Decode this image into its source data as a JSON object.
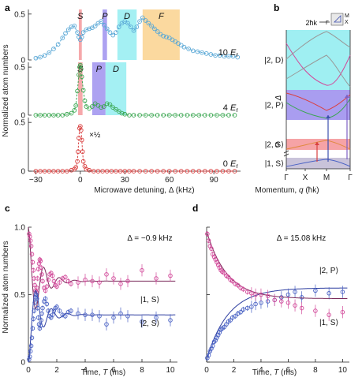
{
  "colors": {
    "blue": "#4a7fc8",
    "light_blue": "#5aa8d6",
    "green": "#3aa650",
    "red": "#d94040",
    "magenta": "#d24a9a",
    "navy": "#3d4fae",
    "cyan_band": "#9feff2",
    "orange_band": "#fbd79a",
    "purple_band": "#a99df0",
    "pink_band": "#f6a3a6",
    "gray_band": "#c9c3da"
  },
  "chart_data": [
    {
      "panel": "a",
      "type": "scatter",
      "xlabel": "Microwave detuning, Δ (kHz)",
      "ylabel": "Normalized atom numbers",
      "xlim": [
        -35,
        108
      ],
      "xticks": [
        "−30",
        "0",
        "30",
        "60",
        "90"
      ],
      "subplots": [
        {
          "label": "10 E_r",
          "label_main": "10 ",
          "label_e": "E",
          "label_sub": "r",
          "ylim": [
            0,
            0.55
          ],
          "yticks": [
            "0",
            "0.5"
          ],
          "color": "#5aa8d6",
          "bands": [
            {
              "label": "S",
              "from": -1,
              "to": 1,
              "color": "#f6a3a6"
            },
            {
              "label": "P",
              "from": 15,
              "to": 18,
              "color": "#a99df0"
            },
            {
              "label": "D",
              "from": 25,
              "to": 38,
              "color": "#9feff2"
            },
            {
              "label": "F",
              "from": 42,
              "to": 67,
              "color": "#fbd79a"
            }
          ],
          "x": [
            -30,
            -27,
            -24,
            -21,
            -18,
            -15,
            -12,
            -10,
            -8,
            -6,
            -4,
            -2,
            -1,
            0,
            1,
            2,
            4,
            6,
            8,
            10,
            12,
            14,
            16,
            18,
            20,
            22,
            24,
            26,
            28,
            30,
            32,
            34,
            36,
            38,
            40,
            42,
            44,
            46,
            48,
            50,
            52,
            54,
            56,
            58,
            60,
            62,
            64,
            66,
            68,
            70,
            73,
            76,
            79,
            82,
            85,
            88,
            91,
            94,
            97,
            100,
            103,
            106
          ],
          "y": [
            0.02,
            0.03,
            0.05,
            0.08,
            0.12,
            0.17,
            0.24,
            0.29,
            0.33,
            0.36,
            0.37,
            0.3,
            0.25,
            0.22,
            0.25,
            0.3,
            0.33,
            0.34,
            0.35,
            0.37,
            0.4,
            0.42,
            0.38,
            0.34,
            0.3,
            0.27,
            0.3,
            0.36,
            0.4,
            0.42,
            0.4,
            0.36,
            0.32,
            0.36,
            0.42,
            0.46,
            0.43,
            0.4,
            0.37,
            0.34,
            0.31,
            0.28,
            0.26,
            0.25,
            0.24,
            0.22,
            0.2,
            0.18,
            0.16,
            0.14,
            0.12,
            0.1,
            0.09,
            0.08,
            0.07,
            0.06,
            0.05,
            0.05,
            0.04,
            0.04,
            0.04,
            0.03
          ]
        },
        {
          "label": "4 E_r",
          "label_main": "4 ",
          "label_e": "E",
          "label_sub": "r",
          "ylim": [
            0,
            0.55
          ],
          "yticks": [
            "0",
            "0.5"
          ],
          "color": "#3aa650",
          "bands": [
            {
              "label": "S",
              "from": -1.5,
              "to": 1.5,
              "color": "#f6a3a6"
            },
            {
              "label": "P",
              "from": 8,
              "to": 17,
              "color": "#a99df0"
            },
            {
              "label": "D",
              "from": 17,
              "to": 31,
              "color": "#9feff2"
            }
          ],
          "x": [
            -30,
            -27,
            -24,
            -21,
            -18,
            -15,
            -12,
            -9,
            -6,
            -4,
            -3,
            -2,
            -1,
            -0.5,
            0,
            0.5,
            1,
            2,
            3,
            4,
            6,
            8,
            10,
            12,
            14,
            16,
            18,
            20,
            22,
            24,
            26,
            28,
            30,
            33,
            36,
            40,
            44,
            48,
            52,
            56,
            60,
            64,
            68,
            72,
            76,
            80,
            84,
            88,
            92,
            96,
            100,
            104
          ],
          "y": [
            0,
            0,
            0,
            0,
            0,
            0,
            0,
            0.01,
            0.02,
            0.05,
            0.1,
            0.25,
            0.42,
            0.5,
            0.52,
            0.48,
            0.4,
            0.26,
            0.15,
            0.09,
            0.07,
            0.09,
            0.12,
            0.1,
            0.08,
            0.09,
            0.12,
            0.11,
            0.08,
            0.06,
            0.04,
            0.02,
            0.01,
            0,
            0,
            0,
            0,
            0,
            0,
            0,
            0,
            0,
            0,
            0,
            0,
            0,
            0,
            0,
            0,
            0,
            0,
            0
          ]
        },
        {
          "label": "0 E_r",
          "label_main": "0 ",
          "label_e": "E",
          "label_sub": "r",
          "ylim": [
            0,
            0.55
          ],
          "yticks": [
            "0",
            "0.5"
          ],
          "color": "#d94040",
          "annotation": "×½",
          "x": [
            -30,
            -27,
            -24,
            -21,
            -18,
            -15,
            -12,
            -9,
            -6,
            -4,
            -3,
            -2,
            -1.5,
            -1,
            -0.5,
            0,
            0.5,
            1,
            1.5,
            2,
            3,
            4,
            6,
            9,
            12,
            15,
            18,
            21,
            24,
            27,
            30,
            33,
            36,
            40,
            44,
            48,
            52,
            56,
            60,
            64,
            68,
            72,
            76,
            80,
            84,
            88,
            92,
            96,
            100,
            104
          ],
          "y": [
            0,
            0,
            0,
            0,
            0,
            0,
            0,
            0,
            0.01,
            0.02,
            0.04,
            0.1,
            0.2,
            0.34,
            0.44,
            0.46,
            0.42,
            0.32,
            0.2,
            0.1,
            0.05,
            0.02,
            0.01,
            0,
            0,
            0,
            0,
            0,
            0,
            0,
            0,
            0,
            0,
            0,
            0,
            0,
            0,
            0,
            0,
            0,
            0,
            0,
            0,
            0,
            0,
            0,
            0,
            0,
            0,
            0
          ]
        }
      ]
    },
    {
      "panel": "b",
      "type": "line",
      "xlabel": "Momentum, q (ħk)",
      "xlabel_pre": "Momentum, ",
      "xlabel_q": "q",
      "xlabel_post": " (ħk)",
      "ylabel": "Δ",
      "xticks": [
        "Γ",
        "X",
        "M",
        "Γ"
      ],
      "scale_label": "2ħk",
      "inset_labels": [
        "M",
        "X",
        "Γ"
      ],
      "bands": [
        {
          "label": "|2, D⟩",
          "color": "#9feff2"
        },
        {
          "label": "|2, P⟩",
          "color": "#a99df0"
        },
        {
          "label": "|2, S⟩",
          "color": "#f6a3a6"
        },
        {
          "label": "|1, S⟩",
          "color": "#c9c3da"
        }
      ],
      "axis_break_tick": "0"
    },
    {
      "panel": "c",
      "type": "scatter",
      "title": "Δ = −0.9 kHz",
      "xlabel": "Time, T (ms)",
      "xlabel_pre": "Time, ",
      "xlabel_t": "T",
      "xlabel_post": " (ms)",
      "ylabel": "Normalized atom numbers",
      "xlim": [
        0,
        10.5
      ],
      "ylim": [
        0,
        1.0
      ],
      "xticks": [
        "0",
        "2",
        "4",
        "6",
        "8",
        "10"
      ],
      "yticks": [
        "0",
        "0.5",
        "1.0"
      ],
      "series": [
        {
          "name": "|1, S⟩",
          "color": "#d24a9a",
          "x": [
            0.05,
            0.1,
            0.15,
            0.2,
            0.25,
            0.3,
            0.35,
            0.4,
            0.45,
            0.5,
            0.55,
            0.6,
            0.65,
            0.7,
            0.75,
            0.8,
            0.85,
            0.9,
            0.95,
            1.0,
            1.1,
            1.2,
            1.3,
            1.4,
            1.5,
            1.6,
            1.7,
            1.8,
            1.9,
            2.0,
            2.2,
            2.4,
            2.6,
            2.8,
            3.0,
            3.5,
            4.0,
            4.5,
            5.0,
            5.5,
            6.0,
            6.5,
            7.0,
            8.0,
            9.0,
            10.0
          ],
          "y": [
            0.95,
            0.93,
            0.9,
            0.86,
            0.8,
            0.74,
            0.68,
            0.62,
            0.57,
            0.53,
            0.52,
            0.55,
            0.62,
            0.69,
            0.73,
            0.76,
            0.75,
            0.7,
            0.65,
            0.6,
            0.55,
            0.53,
            0.56,
            0.61,
            0.65,
            0.66,
            0.64,
            0.6,
            0.57,
            0.56,
            0.59,
            0.62,
            0.63,
            0.6,
            0.58,
            0.59,
            0.61,
            0.6,
            0.59,
            0.65,
            0.62,
            0.58,
            0.6,
            0.68,
            0.62,
            0.64
          ]
        },
        {
          "name": "|2, S⟩",
          "color": "#4a62c4",
          "x": [
            0.05,
            0.1,
            0.15,
            0.2,
            0.25,
            0.3,
            0.35,
            0.4,
            0.45,
            0.5,
            0.55,
            0.6,
            0.65,
            0.7,
            0.75,
            0.8,
            0.85,
            0.9,
            0.95,
            1.0,
            1.1,
            1.2,
            1.3,
            1.4,
            1.5,
            1.6,
            1.7,
            1.8,
            1.9,
            2.0,
            2.2,
            2.4,
            2.6,
            2.8,
            3.0,
            3.5,
            4.0,
            4.5,
            5.0,
            5.5,
            6.0,
            6.5,
            7.0,
            8.0,
            9.0,
            10.0
          ],
          "y": [
            0.02,
            0.04,
            0.08,
            0.12,
            0.18,
            0.25,
            0.32,
            0.38,
            0.44,
            0.48,
            0.5,
            0.47,
            0.4,
            0.33,
            0.28,
            0.25,
            0.27,
            0.31,
            0.36,
            0.4,
            0.45,
            0.47,
            0.43,
            0.38,
            0.34,
            0.33,
            0.35,
            0.38,
            0.4,
            0.41,
            0.38,
            0.35,
            0.34,
            0.37,
            0.38,
            0.36,
            0.35,
            0.35,
            0.34,
            0.28,
            0.33,
            0.36,
            0.34,
            0.3,
            0.33,
            0.31
          ]
        }
      ],
      "fits": {
        "note": "damped oscillation model",
        "equilibrium": [
          0.6,
          0.35
        ]
      }
    },
    {
      "panel": "d",
      "type": "scatter",
      "title": "Δ = 15.08 kHz",
      "xlabel": "Time, T (ms)",
      "xlabel_pre": "Time, ",
      "xlabel_t": "T",
      "xlabel_post": " (ms)",
      "xlim": [
        0,
        10.5
      ],
      "ylim": [
        0,
        1.0
      ],
      "xticks": [
        "0",
        "2",
        "4",
        "6",
        "8",
        "10"
      ],
      "series": [
        {
          "name": "|2, P⟩",
          "color": "#4a62c4",
          "x": [
            0.05,
            0.15,
            0.25,
            0.35,
            0.45,
            0.55,
            0.65,
            0.75,
            0.85,
            0.95,
            1.05,
            1.15,
            1.3,
            1.45,
            1.6,
            1.75,
            1.9,
            2.1,
            2.3,
            2.5,
            2.7,
            3.0,
            3.3,
            3.6,
            4.0,
            4.5,
            5.0,
            5.5,
            6.0,
            6.5,
            7.0,
            8.0,
            9.0,
            10.0
          ],
          "y": [
            0.03,
            0.05,
            0.08,
            0.1,
            0.12,
            0.15,
            0.16,
            0.18,
            0.2,
            0.22,
            0.24,
            0.25,
            0.26,
            0.28,
            0.3,
            0.31,
            0.33,
            0.34,
            0.36,
            0.37,
            0.39,
            0.4,
            0.41,
            0.43,
            0.44,
            0.45,
            0.46,
            0.48,
            0.5,
            0.52,
            0.48,
            0.53,
            0.51,
            0.52
          ]
        },
        {
          "name": "|1, S⟩",
          "color": "#d24a9a",
          "x": [
            0.05,
            0.15,
            0.25,
            0.35,
            0.45,
            0.55,
            0.65,
            0.75,
            0.85,
            0.95,
            1.05,
            1.15,
            1.3,
            1.45,
            1.6,
            1.75,
            1.9,
            2.1,
            2.3,
            2.5,
            2.7,
            3.0,
            3.3,
            3.6,
            4.0,
            4.5,
            5.0,
            5.5,
            6.0,
            6.5,
            7.0,
            8.0,
            9.0,
            10.0
          ],
          "y": [
            0.95,
            0.9,
            0.86,
            0.84,
            0.8,
            0.78,
            0.76,
            0.74,
            0.72,
            0.7,
            0.68,
            0.67,
            0.66,
            0.64,
            0.63,
            0.61,
            0.6,
            0.58,
            0.57,
            0.55,
            0.54,
            0.52,
            0.51,
            0.5,
            0.5,
            0.49,
            0.46,
            0.45,
            0.44,
            0.42,
            0.4,
            0.38,
            0.35,
            0.37
          ]
        }
      ],
      "fits": {
        "note": "exponential relaxation model",
        "equilibrium": [
          0.55,
          0.47
        ]
      }
    }
  ]
}
